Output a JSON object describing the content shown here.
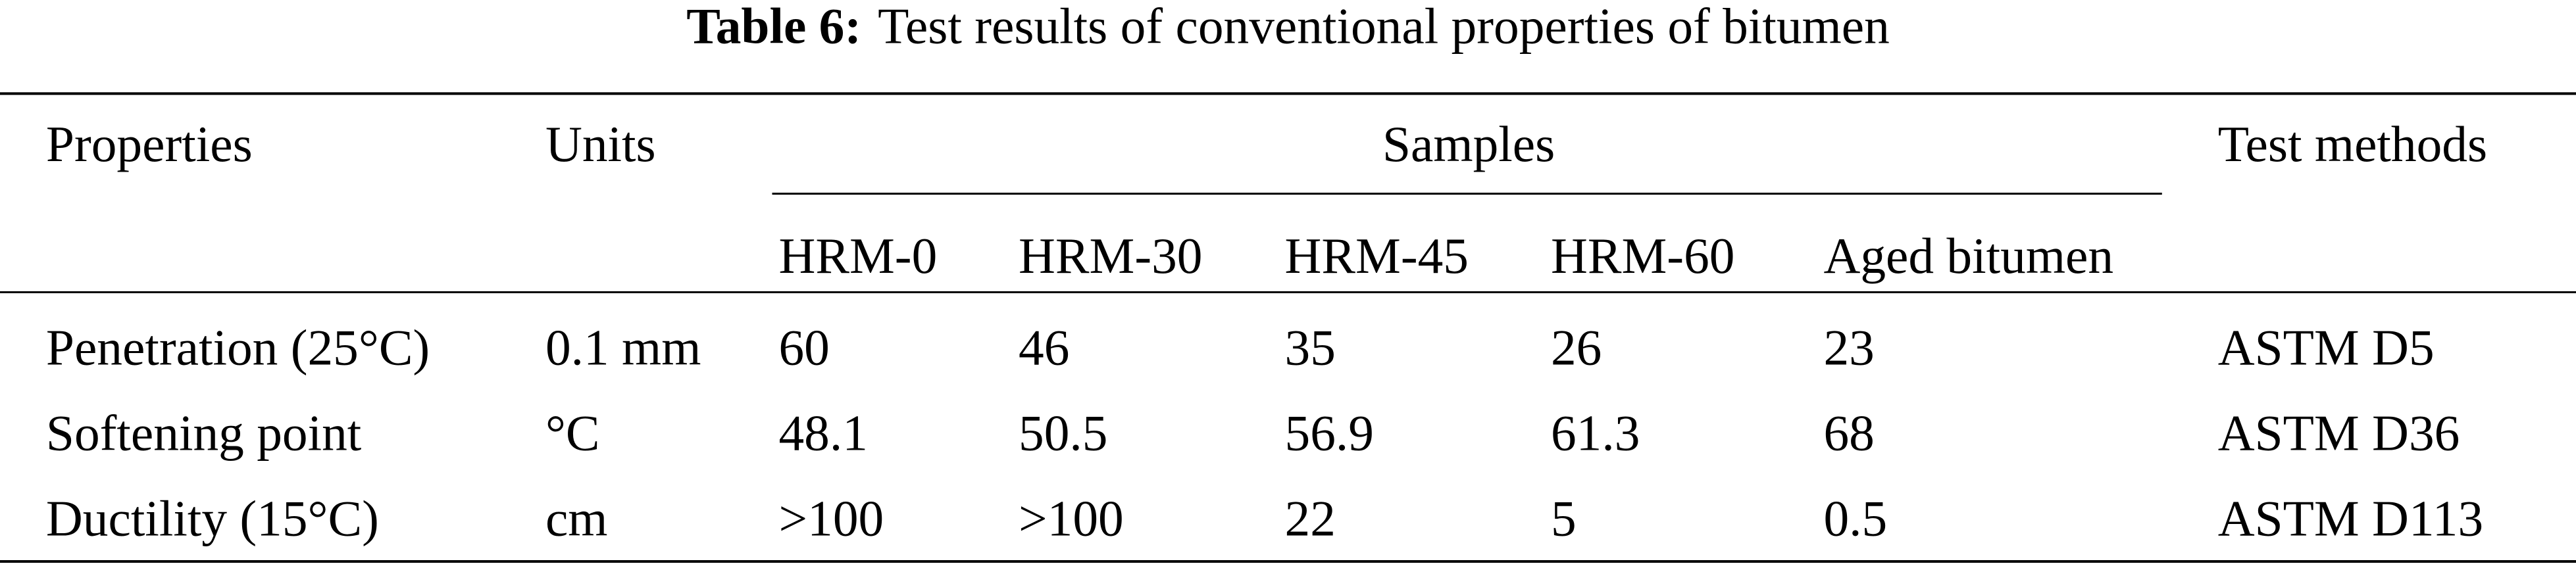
{
  "table": {
    "caption": {
      "label": "Table 6:",
      "text": "Test results of conventional properties of bitumen"
    },
    "headers": [
      "Properties",
      "Units",
      "Samples",
      "Test methods"
    ],
    "samples": [
      "HRM-0",
      "HRM-30",
      "HRM-45",
      "HRM-60",
      "Aged bitumen"
    ],
    "rows": [
      {
        "property": "Penetration (25°C)",
        "unit": "0.1 mm",
        "values": [
          60,
          46,
          35,
          26,
          23
        ],
        "method": "ASTM D5"
      },
      {
        "property": "Softening point",
        "unit": "°C",
        "values": [
          48.1,
          50.5,
          56.9,
          61.3,
          68
        ],
        "method": "ASTM D36"
      },
      {
        "property": "Ductility (15°C)",
        "unit": "cm",
        "values": [
          ">100",
          ">100",
          22,
          5,
          0.5
        ],
        "method": "ASTM D113"
      }
    ]
  }
}
